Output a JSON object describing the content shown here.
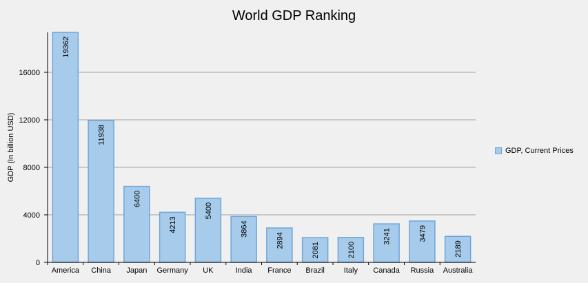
{
  "chart_data": {
    "type": "bar",
    "title": "World GDP Ranking",
    "xlabel": "",
    "ylabel": "GDP (In billion USD)",
    "categories": [
      "America",
      "China",
      "Japan",
      "Germany",
      "UK",
      "India",
      "France",
      "Brazil",
      "Italy",
      "Canada",
      "Russia",
      "Australia"
    ],
    "series": [
      {
        "name": "GDP, Current Prices",
        "values": [
          19362,
          11938,
          6400,
          4213,
          5400,
          3864,
          2894,
          2081,
          2100,
          3241,
          3479,
          2189
        ]
      }
    ],
    "ylim": [
      0,
      19362
    ],
    "yticks": [
      0,
      4000,
      8000,
      12000,
      16000
    ],
    "grid": true,
    "legend": "right",
    "colors": {
      "bar_fill": "#a7cbea",
      "bar_stroke": "#6ea6da",
      "grid": "#a0a0a0",
      "axis": "#000000",
      "background": "#f0f0f0"
    }
  }
}
